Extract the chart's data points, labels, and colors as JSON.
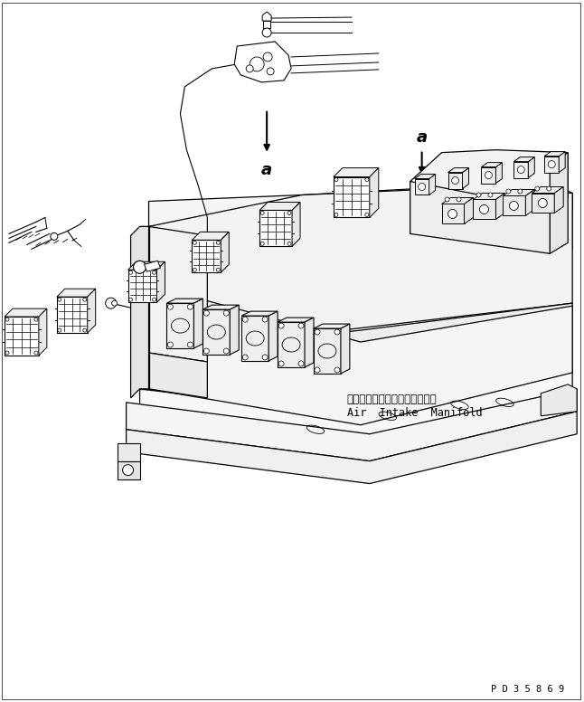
{
  "bg_color": "#ffffff",
  "line_color": "#000000",
  "label_japanese": "エアーインテークマニホールド",
  "label_english": "Air  Intake  Manifold",
  "label_a1": "a",
  "label_a2": "a",
  "part_number": "P D 3 5 8 6 9",
  "label_font_size": 8.5,
  "annotation_font_size": 13
}
